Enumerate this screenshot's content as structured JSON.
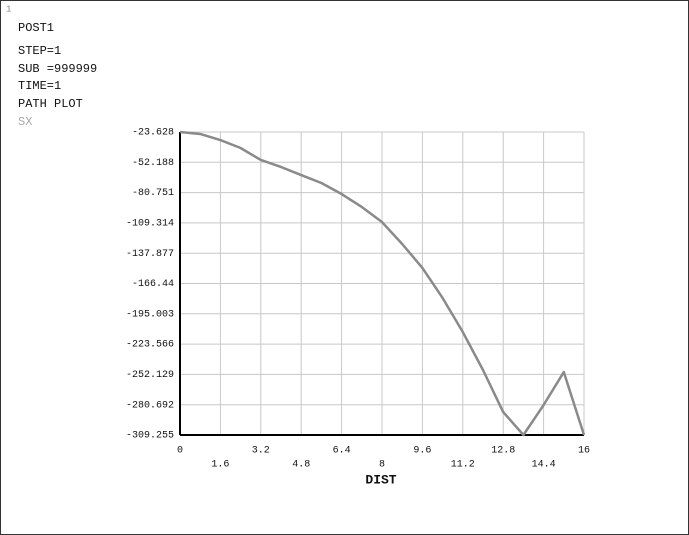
{
  "chart_data": {
    "type": "line",
    "window_number": "1",
    "title": "POST1",
    "info_lines": [
      "STEP=1",
      "SUB =999999",
      "TIME=1",
      "PATH PLOT"
    ],
    "ylabel": "SX",
    "xlabel": "DIST",
    "x": [
      0,
      0.8,
      1.6,
      2.4,
      3.2,
      4.0,
      4.8,
      5.6,
      6.4,
      7.2,
      8.0,
      8.8,
      9.6,
      10.4,
      11.2,
      12.0,
      12.8,
      13.6,
      14.4,
      15.2,
      16
    ],
    "series": [
      {
        "name": "SX",
        "color": "#8a8a8a",
        "values": [
          -23.628,
          -25.5,
          -31.2,
          -38.7,
          -50.0,
          -56.6,
          -64.2,
          -71.7,
          -82.1,
          -94.3,
          -108.5,
          -129.2,
          -151.8,
          -180.1,
          -212.2,
          -248.0,
          -287.6,
          -309.255,
          -281.0,
          -249.9,
          -309.255
        ]
      }
    ],
    "xlim": [
      0,
      16
    ],
    "xticks": [
      0,
      1.6,
      3.2,
      4.8,
      6.4,
      8,
      9.6,
      11.2,
      12.8,
      14.4,
      16
    ],
    "ylim": [
      -309.255,
      -23.628
    ],
    "yticks": [
      -23.628,
      -52.188,
      -80.751,
      -109.314,
      -137.877,
      -166.44,
      -195.003,
      -223.566,
      -252.129,
      -280.692,
      -309.255
    ],
    "grid": true
  }
}
